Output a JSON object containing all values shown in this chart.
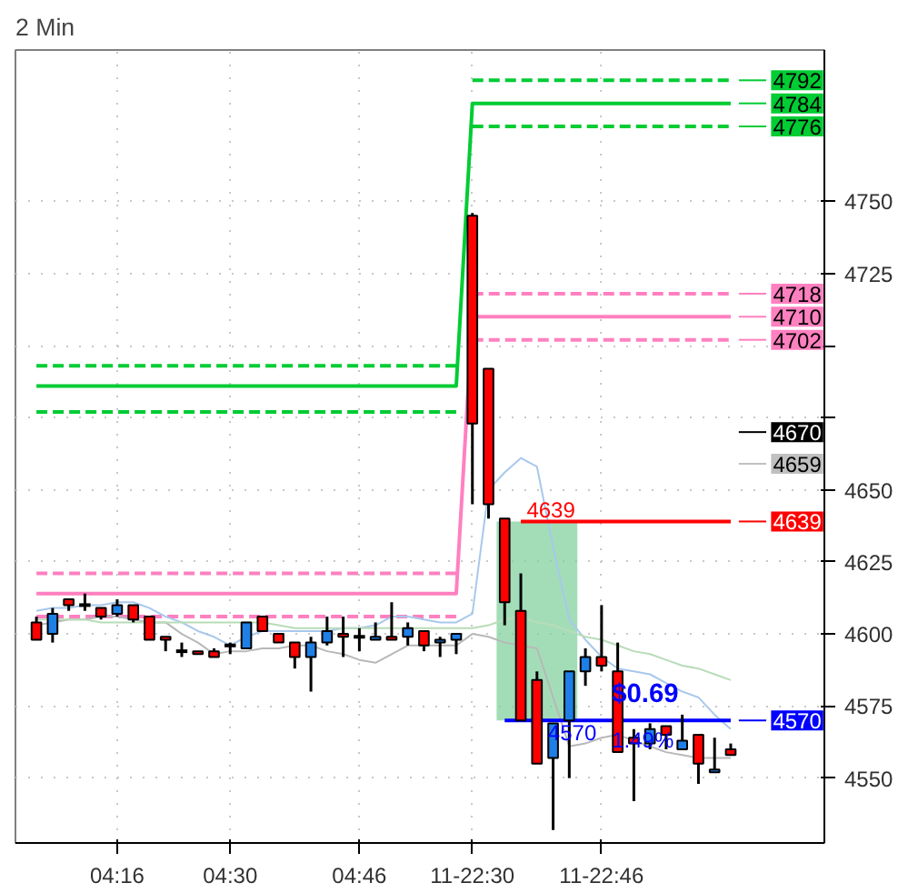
{
  "chart_data": {
    "type": "candlestick",
    "title": "2 Min",
    "categories": [
      null,
      null,
      null,
      null,
      null,
      "04:16",
      null,
      null,
      null,
      null,
      null,
      null,
      "04:30",
      null,
      null,
      null,
      null,
      null,
      null,
      null,
      "04:46",
      null,
      null,
      null,
      null,
      null,
      null,
      "11-22:30",
      null,
      null,
      null,
      null,
      null,
      null,
      null,
      "11-22:46",
      null,
      null,
      null,
      null,
      null,
      null,
      null,
      null
    ],
    "ohlc": [
      [
        4604,
        4606,
        4598,
        4598
      ],
      [
        4600,
        4609,
        4597,
        4607
      ],
      [
        4612,
        4612,
        4608,
        4610
      ],
      [
        4610,
        4614,
        4608,
        4610
      ],
      [
        4609,
        4609,
        4605,
        4606
      ],
      [
        4607,
        4612,
        4606,
        4610
      ],
      [
        4610,
        4610,
        4604,
        4605
      ],
      [
        4606,
        4606,
        4598,
        4598
      ],
      [
        4599,
        4599,
        4594,
        4598
      ],
      [
        4594,
        4597,
        4592,
        4594
      ],
      [
        4594,
        4594,
        4593,
        4593
      ],
      [
        4594,
        4595,
        4592,
        4592
      ],
      [
        4596,
        4597,
        4593,
        4596
      ],
      [
        4595,
        4604,
        4595,
        4604
      ],
      [
        4606,
        4606,
        4601,
        4601
      ],
      [
        4600,
        4600,
        4597,
        4597
      ],
      [
        4597,
        4597,
        4588,
        4592
      ],
      [
        4592,
        4599,
        4580,
        4597
      ],
      [
        4597,
        4606,
        4596,
        4601
      ],
      [
        4600,
        4606,
        4592,
        4599
      ],
      [
        4599,
        4602,
        4594,
        4599
      ],
      [
        4598,
        4604,
        4598,
        4599
      ],
      [
        4599,
        4611,
        4598,
        4598
      ],
      [
        4599,
        4604,
        4596,
        4602
      ],
      [
        4601,
        4601,
        4594,
        4596
      ],
      [
        4597,
        4599,
        4592,
        4598
      ],
      [
        4598,
        4600,
        4593,
        4600
      ],
      [
        4745,
        4746,
        4645,
        4673
      ],
      [
        4692,
        4692,
        4640,
        4645
      ],
      [
        4640,
        4640,
        4603,
        4611
      ],
      [
        4608,
        4621,
        4570,
        4570
      ],
      [
        4584,
        4587,
        4555,
        4555
      ],
      [
        4557,
        4569,
        4532,
        4569
      ],
      [
        4570,
        4587,
        4550,
        4587
      ],
      [
        4587,
        4595,
        4582,
        4592
      ],
      [
        4592,
        4610,
        4587,
        4589
      ],
      [
        4587,
        4597,
        4559,
        4559
      ],
      [
        4564,
        4567,
        4542,
        4562
      ],
      [
        4562,
        4569,
        4560,
        4567
      ],
      [
        4568,
        4568,
        4560,
        4565
      ],
      [
        4560,
        4572,
        4560,
        4563
      ],
      [
        4565,
        4565,
        4548,
        4555
      ],
      [
        4552,
        4564,
        4552,
        4553
      ],
      [
        4560,
        4562,
        4558,
        4558
      ]
    ],
    "colors": [
      "#ff0000",
      "#1e7fe6",
      "#ff0000",
      "#000000",
      "#ff0000",
      "#1e7fe6",
      "#ff0000",
      "#ff0000",
      "#ff0000",
      "#000000",
      "#ff0000",
      "#ff0000",
      "#000000",
      "#1e7fe6",
      "#ff0000",
      "#ff0000",
      "#ff0000",
      "#1e7fe6",
      "#1e7fe6",
      "#ff0000",
      "#000000",
      "#1e7fe6",
      "#ff0000",
      "#1e7fe6",
      "#ff0000",
      "#1e7fe6",
      "#1e7fe6",
      "#ff0000",
      "#ff0000",
      "#ff0000",
      "#ff0000",
      "#ff0000",
      "#1e7fe6",
      "#1e7fe6",
      "#1e7fe6",
      "#ff0000",
      "#ff0000",
      "#ff0000",
      "#1e7fe6",
      "#ff0000",
      "#1e7fe6",
      "#ff0000",
      "#1e7fe6",
      "#ff0000"
    ],
    "series": [
      {
        "type": "line",
        "color": "#00cc33",
        "line_style": "dashed",
        "values": [
          4693,
          4693,
          4693,
          4693,
          4693,
          4693,
          4693,
          4693,
          4693,
          4693,
          4693,
          4693,
          4693,
          4693,
          4693,
          4693,
          4693,
          4693,
          4693,
          4693,
          4693,
          4693,
          4693,
          4693,
          4693,
          4693,
          4693,
          null,
          null,
          null,
          null,
          null,
          null,
          null,
          null,
          null,
          null,
          null,
          null,
          null,
          null,
          null,
          null,
          null
        ]
      },
      {
        "type": "line",
        "color": "#00cc33",
        "line_style": "dashed",
        "values": [
          4677,
          4677,
          4677,
          4677,
          4677,
          4677,
          4677,
          4677,
          4677,
          4677,
          4677,
          4677,
          4677,
          4677,
          4677,
          4677,
          4677,
          4677,
          4677,
          4677,
          4677,
          4677,
          4677,
          4677,
          4677,
          4677,
          4677,
          null,
          null,
          null,
          null,
          null,
          null,
          null,
          null,
          null,
          null,
          null,
          null,
          null,
          null,
          null,
          null,
          null
        ]
      },
      {
        "type": "line",
        "color": "#00cc33",
        "line_style": "dashed",
        "values": [
          null,
          null,
          null,
          null,
          null,
          null,
          null,
          null,
          null,
          null,
          null,
          null,
          null,
          null,
          null,
          null,
          null,
          null,
          null,
          null,
          null,
          null,
          null,
          null,
          null,
          null,
          null,
          4792,
          4792,
          4792,
          4792,
          4792,
          4792,
          4792,
          4792,
          4792,
          4792,
          4792,
          4792,
          4792,
          4792,
          4792,
          4792,
          4792
        ]
      },
      {
        "type": "line",
        "color": "#00cc33",
        "line_style": "dashed",
        "values": [
          null,
          null,
          null,
          null,
          null,
          null,
          null,
          null,
          null,
          null,
          null,
          null,
          null,
          null,
          null,
          null,
          null,
          null,
          null,
          null,
          null,
          null,
          null,
          null,
          null,
          null,
          null,
          4776,
          4776,
          4776,
          4776,
          4776,
          4776,
          4776,
          4776,
          4776,
          4776,
          4776,
          4776,
          4776,
          4776,
          4776,
          4776,
          4776
        ]
      },
      {
        "type": "line",
        "color": "#00cc33",
        "line_style": "solid",
        "values": [
          4686,
          4686,
          4686,
          4686,
          4686,
          4686,
          4686,
          4686,
          4686,
          4686,
          4686,
          4686,
          4686,
          4686,
          4686,
          4686,
          4686,
          4686,
          4686,
          4686,
          4686,
          4686,
          4686,
          4686,
          4686,
          4686,
          4686,
          4784,
          4784,
          4784,
          4784,
          4784,
          4784,
          4784,
          4784,
          4784,
          4784,
          4784,
          4784,
          4784,
          4784,
          4784,
          4784,
          4784
        ]
      },
      {
        "type": "line",
        "color": "#ff80c0",
        "line_style": "dashed",
        "values": [
          4621,
          4621,
          4621,
          4621,
          4621,
          4621,
          4621,
          4621,
          4621,
          4621,
          4621,
          4621,
          4621,
          4621,
          4621,
          4621,
          4621,
          4621,
          4621,
          4621,
          4621,
          4621,
          4621,
          4621,
          4621,
          4621,
          4621,
          null,
          null,
          null,
          null,
          null,
          null,
          null,
          null,
          null,
          null,
          null,
          null,
          null,
          null,
          null,
          null,
          null
        ]
      },
      {
        "type": "line",
        "color": "#ff80c0",
        "line_style": "dashed",
        "values": [
          4606,
          4606,
          4606,
          4606,
          4606,
          4606,
          4606,
          4606,
          4606,
          4606,
          4606,
          4606,
          4606,
          4606,
          4606,
          4606,
          4606,
          4606,
          4606,
          4606,
          4606,
          4606,
          4606,
          4606,
          4606,
          4606,
          4606,
          null,
          null,
          null,
          null,
          null,
          null,
          null,
          null,
          null,
          null,
          null,
          null,
          null,
          null,
          null,
          null,
          null
        ]
      },
      {
        "type": "line",
        "color": "#ff80c0",
        "line_style": "dashed",
        "values": [
          null,
          null,
          null,
          null,
          null,
          null,
          null,
          null,
          null,
          null,
          null,
          null,
          null,
          null,
          null,
          null,
          null,
          null,
          null,
          null,
          null,
          null,
          null,
          null,
          null,
          null,
          null,
          4718,
          4718,
          4718,
          4718,
          4718,
          4718,
          4718,
          4718,
          4718,
          4718,
          4718,
          4718,
          4718,
          4718,
          4718,
          4718,
          4718
        ]
      },
      {
        "type": "line",
        "color": "#ff80c0",
        "line_style": "dashed",
        "values": [
          null,
          null,
          null,
          null,
          null,
          null,
          null,
          null,
          null,
          null,
          null,
          null,
          null,
          null,
          null,
          null,
          null,
          null,
          null,
          null,
          null,
          null,
          null,
          null,
          null,
          null,
          null,
          4702,
          4702,
          4702,
          4702,
          4702,
          4702,
          4702,
          4702,
          4702,
          4702,
          4702,
          4702,
          4702,
          4702,
          4702,
          4702,
          4702
        ]
      },
      {
        "type": "line",
        "color": "#ff80c0",
        "line_style": "solid",
        "values": [
          4614,
          4614,
          4614,
          4614,
          4614,
          4614,
          4614,
          4614,
          4614,
          4614,
          4614,
          4614,
          4614,
          4614,
          4614,
          4614,
          4614,
          4614,
          4614,
          4614,
          4614,
          4614,
          4614,
          4614,
          4614,
          4614,
          4614,
          4710,
          4710,
          4710,
          4710,
          4710,
          4710,
          4710,
          4710,
          4710,
          4710,
          4710,
          4710,
          4710,
          4710,
          4710,
          4710,
          4710
        ]
      },
      {
        "type": "line",
        "color": "#a8c8ec",
        "line_style": "solid",
        "values": [
          4608,
          4609,
          4609,
          4610,
          4610,
          4611,
          4611,
          4609,
          4606,
          4604,
          4601,
          4599,
          4596,
          4599,
          4601,
          4601,
          4601,
          4601,
          4601,
          4602,
          4602,
          4603,
          4606,
          4606,
          4605,
          4604,
          4604,
          4607,
          4650,
          4656,
          4661,
          4658,
          4630,
          4605,
          4598,
          4592,
          4588,
          4587,
          4586,
          4583,
          4580,
          4578,
          4572,
          4567
        ]
      },
      {
        "type": "line",
        "color": "#b8b8b8",
        "line_style": "solid",
        "values": [
          4603,
          4604,
          4605,
          4605,
          4606,
          4606,
          4605,
          4604,
          4604,
          4600,
          4597,
          4593,
          4594,
          4594,
          4595,
          4595,
          4596,
          4596,
          4594,
          4593,
          4591,
          4590,
          4593,
          4596,
          4596,
          4596,
          4596,
          4600,
          4599,
          4597,
          4596,
          4595,
          4578,
          4561,
          4562,
          4564,
          4565,
          4563,
          4561,
          4559,
          4558,
          4557,
          4557,
          4557
        ]
      },
      {
        "type": "line",
        "color": "#b8dcb8",
        "line_style": "solid",
        "values": [
          4605,
          4605,
          4605,
          4605,
          4604,
          4604,
          4604,
          4604,
          4604,
          4604,
          4604,
          4604,
          4604,
          4604,
          4604,
          4603,
          4602,
          4602,
          4602,
          4602,
          4602,
          4602,
          4602,
          4602,
          4602,
          4602,
          4602,
          4602,
          4603,
          4605,
          4606,
          4604,
          4603,
          4601,
          4599,
          4598,
          4596,
          4594,
          4593,
          4591,
          4589,
          4588,
          4586,
          4584
        ]
      },
      {
        "type": "line",
        "color": "#ff0000",
        "line_style": "solid",
        "values": [
          null,
          null,
          null,
          null,
          null,
          null,
          null,
          null,
          null,
          null,
          null,
          null,
          null,
          null,
          null,
          null,
          null,
          null,
          null,
          null,
          null,
          null,
          null,
          null,
          null,
          null,
          null,
          null,
          null,
          null,
          4639,
          4639,
          4639,
          4639,
          4639,
          4639,
          4639,
          4639,
          4639,
          4639,
          4639,
          4639,
          4639,
          4639
        ]
      },
      {
        "type": "line",
        "color": "#0000ff",
        "line_style": "solid",
        "values": [
          null,
          null,
          null,
          null,
          null,
          null,
          null,
          null,
          null,
          null,
          null,
          null,
          null,
          null,
          null,
          null,
          null,
          null,
          null,
          null,
          null,
          null,
          null,
          null,
          null,
          null,
          null,
          null,
          null,
          4570,
          4570,
          4570,
          4570,
          4570,
          4570,
          4570,
          4570,
          4570,
          4570,
          4570,
          4570,
          4570,
          4570,
          4570
        ]
      }
    ],
    "annotations": [
      {
        "text": "4639",
        "y": 4639
      },
      {
        "text": "4570",
        "y": 4570
      },
      "$0.69",
      "1.49%"
    ],
    "ref_lines": [
      {
        "axis": "y",
        "value": 4792,
        "label": "4792",
        "color": "#00cc33"
      },
      {
        "axis": "y",
        "value": 4784,
        "label": "4784",
        "color": "#00cc33"
      },
      {
        "axis": "y",
        "value": 4776,
        "label": "4776",
        "color": "#00cc33"
      },
      {
        "axis": "y",
        "value": 4718,
        "label": "4718",
        "color": "#ff80c0"
      },
      {
        "axis": "y",
        "value": 4710,
        "label": "4710",
        "color": "#ff80c0"
      },
      {
        "axis": "y",
        "value": 4702,
        "label": "4702",
        "color": "#ff80c0"
      },
      {
        "axis": "y",
        "value": 4670,
        "label": "4670",
        "color": "#000000"
      },
      {
        "axis": "y",
        "value": 4659,
        "label": "4659",
        "color": "#c0c0c0"
      },
      {
        "axis": "y",
        "value": 4639,
        "label": "4639",
        "color": "#ff0000"
      },
      {
        "axis": "y",
        "value": 4570,
        "label": "4570",
        "color": "#0000ff"
      }
    ],
    "bands": [
      {
        "axis": "y",
        "from": 4570,
        "to": 4639,
        "color": "#7ccf9a"
      }
    ],
    "ylim": [
      4527.5,
      4802.5
    ],
    "yticks": [
      4550,
      4575,
      4600,
      4625,
      4650,
      {
        "value": 4675,
        "label": null
      },
      {
        "value": 4700,
        "label": null
      },
      4725,
      4750
    ],
    "grid": true
  }
}
